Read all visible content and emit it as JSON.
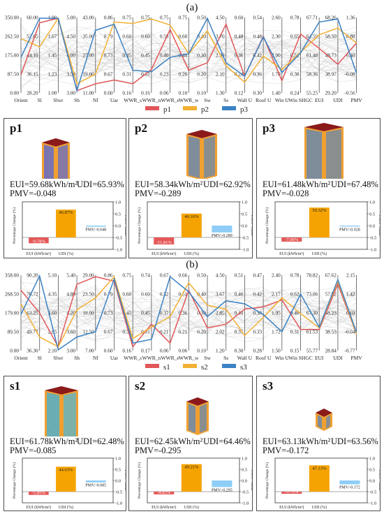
{
  "chart_data": [
    {
      "panel": "(a)",
      "type": "parallel-coordinates",
      "axes": [
        "Orient",
        "Sl",
        "Slwr",
        "Sh",
        "Nf",
        "Uar",
        "WWR_s",
        "WWR_n",
        "WWR_e",
        "WWR_w",
        "Sw",
        "Ss",
        "Wall U",
        "Roof U",
        "Win U",
        "Win SHGC",
        "EUI",
        "UDI",
        "PMV"
      ],
      "ticks": [
        [
          "350.00",
          "262.50",
          "175.00",
          "87.50",
          "0.00"
        ],
        [
          "60.00",
          "52.05",
          "44.10",
          "36.15",
          "28.20"
        ],
        [
          "1.90",
          "1.67",
          "1.45",
          "1.23",
          "1.00"
        ],
        [
          "5.00",
          "4.50",
          "4.00",
          "3.50",
          "3.00"
        ],
        [
          "43.00",
          "35.00",
          "27.00",
          "19.00",
          "11.00"
        ],
        [
          "0.86",
          "0.79",
          "0.73",
          "0.67",
          "0.60"
        ],
        [
          "0.75",
          "0.60",
          "0.45",
          "0.31",
          "0.16"
        ],
        [
          "0.75",
          "0.60",
          "0.45",
          "0.31",
          "0.16"
        ],
        [
          "0.75",
          "0.58",
          "0.40",
          "0.23",
          "0.06"
        ],
        [
          "0.75",
          "0.60",
          "0.44",
          "0.26",
          "0.10"
        ],
        [
          "0.50",
          "0.40",
          "0.30",
          "0.20",
          "0.10"
        ],
        [
          "4.50",
          "3.70",
          "2.90",
          "2.10",
          "1.30"
        ],
        [
          "0.60",
          "0.48",
          "0.36",
          "0.24",
          "0.12"
        ],
        [
          "0.54",
          "0.48",
          "0.42",
          "0.36",
          "0.30"
        ],
        [
          "2.60",
          "2.30",
          "2.00",
          "1.70",
          "1.40"
        ],
        [
          "0.78",
          "0.65",
          "0.51",
          "0.38",
          "0.24"
        ],
        [
          "67.71",
          "64.59",
          "61.48",
          "58.36",
          "55.25"
        ],
        [
          "68.26",
          "58.50",
          "48.73",
          "38.97",
          "29.20"
        ],
        [
          "1.36",
          "0.88",
          "0.40",
          "-0.08",
          "-0.56"
        ]
      ],
      "series": [
        {
          "name": "p1",
          "color": "#e15759",
          "norm": [
            0.24,
            0.93,
            0.99,
            0.03,
            0.12,
            0.17,
            0.12,
            0.31,
            0.84,
            0.3,
            0.4,
            0.91,
            0.22,
            0.75,
            0.16,
            0.78,
            0.59,
            0.38,
            0.66
          ]
        },
        {
          "name": "p2",
          "color": "#f2b134",
          "norm": [
            0.72,
            0.61,
            0.99,
            0.12,
            0.25,
            0.94,
            0.92,
            0.98,
            0.9,
            0.52,
            0.82,
            0.36,
            0.14,
            0.49,
            0.31,
            0.54,
            0.77,
            0.86,
            0.66
          ]
        },
        {
          "name": "p3",
          "color": "#3b82c4",
          "norm": [
            0.47,
            0.99,
            0.99,
            0.03,
            0.83,
            0.91,
            0.3,
            0.28,
            0.47,
            0.52,
            0.99,
            0.4,
            0.22,
            0.74,
            0.27,
            0.53,
            0.94,
            0.98,
            0.26
          ]
        }
      ],
      "legend": [
        "p1",
        "p2",
        "p3"
      ]
    },
    {
      "panel": "(b)",
      "type": "parallel-coordinates",
      "axes": [
        "Orient",
        "Sl",
        "Slwr",
        "Sh",
        "Nf",
        "Uar",
        "WWR_s",
        "WWR_n",
        "WWR_e",
        "WWR_w",
        "Sw",
        "Ss",
        "Wall U",
        "Roof U",
        "Win U",
        "Win SHGC",
        "EUI",
        "UDI",
        "PMV"
      ],
      "ticks": [
        [
          "358.00",
          "268.50",
          "179.00",
          "89.50",
          "0.00"
        ],
        [
          "90.20",
          "76.72",
          "63.25",
          "49.77",
          "36.30"
        ],
        [
          "5.10",
          "4.35",
          "3.60",
          "2.85",
          "2.10"
        ],
        [
          "5.40",
          "4.80",
          "4.20",
          "3.60",
          "3.00"
        ],
        [
          "29.00",
          "23.50",
          "18.00",
          "12.50",
          "7.00"
        ],
        [
          "0.86",
          "0.79",
          "0.73",
          "0.67",
          "0.60"
        ],
        [
          "0.75",
          "0.60",
          "0.45",
          "0.31",
          "0.16"
        ],
        [
          "0.74",
          "0.60",
          "0.45",
          "0.31",
          "0.17"
        ],
        [
          "0.67",
          "0.52",
          "0.37",
          "0.21",
          "0.06"
        ],
        [
          "0.66",
          "0.51",
          "0.36",
          "0.21",
          "0.06"
        ],
        [
          "0.50",
          "0.40",
          "0.30",
          "0.20",
          "0.10"
        ],
        [
          "4.50",
          "3.67",
          "2.85",
          "2.02",
          "1.20"
        ],
        [
          "0.51",
          "0.46",
          "0.40",
          "0.35",
          "0.30"
        ],
        [
          "0.47",
          "0.42",
          "0.38",
          "0.33",
          "0.28"
        ],
        [
          "2.40",
          "2.17",
          "1.95",
          "1.72",
          "1.50"
        ],
        [
          "0.78",
          "0.62",
          "0.46",
          "0.31",
          "0.15"
        ],
        [
          "78.82",
          "73.06",
          "67.30",
          "61.53",
          "55.77"
        ],
        [
          "67.62",
          "57.92",
          "48.23",
          "38.53",
          "28.84"
        ],
        [
          "2.15",
          "1.42",
          "0.69",
          "-0.04",
          "-0.77"
        ]
      ],
      "series": [
        {
          "name": "s1",
          "color": "#e15759",
          "norm": [
            0.8,
            0.5,
            0.05,
            0.88,
            0.98,
            0.92,
            0.05,
            0.35,
            0.1,
            0.8,
            0.3,
            0.35,
            0.55,
            0.58,
            0.67,
            0.28,
            0.28,
            0.88,
            0.22
          ]
        },
        {
          "name": "s2",
          "color": "#f2b134",
          "norm": [
            0.62,
            0.18,
            0.05,
            0.54,
            0.7,
            0.98,
            0.16,
            0.31,
            0.45,
            0.9,
            0.6,
            0.55,
            0.2,
            0.44,
            0.7,
            0.49,
            0.3,
            0.92,
            0.22
          ]
        },
        {
          "name": "s3",
          "color": "#3b82c4",
          "norm": [
            0.48,
            0.99,
            0.01,
            0.18,
            0.25,
            0.95,
            0.1,
            0.15,
            0.98,
            0.78,
            0.45,
            0.66,
            0.62,
            0.48,
            0.25,
            0.75,
            0.31,
            0.94,
            0.24
          ]
        }
      ],
      "legend": [
        "s1",
        "s2",
        "s3"
      ]
    },
    {
      "card": "p1",
      "type": "bar",
      "categories": [
        "EUI (kWh/m²)",
        "UDI (%)"
      ],
      "values": [
        -9.78,
        46.87
      ],
      "labels": [
        "-9.78%",
        "46.87%"
      ],
      "pmv": -0.048,
      "pmv_label": "PMV:-0.048",
      "ylabel": "Percentage Change (%)",
      "y2label": "PMV Value",
      "ylim": [
        -20,
        60
      ],
      "y2lim": [
        -1.0,
        1.0
      ],
      "y2ticks": [
        "1.0",
        "0.5",
        "0.0",
        "-0.5",
        "-1.0"
      ]
    },
    {
      "card": "p2",
      "type": "bar",
      "categories": [
        "EUI (kWh/m²)",
        "UDI (%)"
      ],
      "values": [
        -11.81,
        40.16
      ],
      "labels": [
        "-11.81%",
        "40.16%"
      ],
      "pmv": -0.289,
      "pmv_label": "PMV:-0.289",
      "ylabel": "Percentage Change (%)",
      "y2label": "PMV Value",
      "ylim": [
        -20,
        60
      ],
      "y2lim": [
        -1.0,
        1.0
      ],
      "y2ticks": [
        "1.0",
        "0.5",
        "0.0",
        "-0.5",
        "-1.0"
      ]
    },
    {
      "card": "p3",
      "type": "bar",
      "categories": [
        "EUI (kWh/m²)",
        "UDI (%)"
      ],
      "values": [
        -7.06,
        50.32
      ],
      "labels": [
        "-7.06%",
        "50.32%"
      ],
      "pmv": -0.028,
      "pmv_label": "PMV:-0.028",
      "ylabel": "Percentage Change (%)",
      "y2label": "PMV Value",
      "ylim": [
        -20,
        60
      ],
      "y2lim": [
        -1.0,
        1.0
      ],
      "y2ticks": [
        "1.0",
        "0.5",
        "0.0",
        "-0.5",
        "-1.0"
      ]
    },
    {
      "card": "s1",
      "type": "bar",
      "categories": [
        "EUI (kWh/m²)",
        "UDI (%)"
      ],
      "values": [
        -5.85,
        44.63
      ],
      "labels": [
        "-5.85%",
        "44.63%"
      ],
      "pmv": -0.085,
      "pmv_label": "PMV:-0.085",
      "ylabel": "Percentage Change (%)",
      "y2label": "PMV Value",
      "ylim": [
        -20,
        60
      ],
      "y2lim": [
        -1.0,
        1.0
      ],
      "y2ticks": [
        "1.0",
        "0.5",
        "0.0",
        "-0.5",
        "-1.0"
      ]
    },
    {
      "card": "s2",
      "type": "bar",
      "categories": [
        "EUI (kWh/m²)",
        "UDI (%)"
      ],
      "values": [
        -4.83,
        49.21
      ],
      "labels": [
        "-4.83%",
        "49.21%"
      ],
      "pmv": -0.295,
      "pmv_label": "PMV:-0.295",
      "ylabel": "Percentage Change (%)",
      "y2label": "PMV Value",
      "ylim": [
        -20,
        60
      ],
      "y2lim": [
        -1.0,
        1.0
      ],
      "y2ticks": [
        "1.0",
        "0.5",
        "0.0",
        "-0.5",
        "-1.0"
      ]
    },
    {
      "card": "s3",
      "type": "bar",
      "categories": [
        "EUI (kWh/m²)",
        "UDI (%)"
      ],
      "values": [
        -3.79,
        47.13
      ],
      "labels": [
        "-3.79%",
        "47.13%"
      ],
      "pmv": -0.172,
      "pmv_label": "PMV:-0.172",
      "ylabel": "Percentage Change (%)",
      "y2label": "PMV Value",
      "ylim": [
        -20,
        60
      ],
      "y2lim": [
        -1.0,
        1.0
      ],
      "y2ticks": [
        "1.0",
        "0.5",
        "0.0",
        "-0.5",
        "-1.0"
      ]
    }
  ],
  "labels": {
    "a": "(a)",
    "b": "(b)"
  },
  "cards": [
    {
      "title": "p1",
      "eui": "EUI=59.68kWh/m²",
      "udi": "UDI=65.93%",
      "pmv": "PMV=-0.048"
    },
    {
      "title": "p2",
      "eui": "EUI=58.34kWh/m²",
      "udi": "UDI=62.92%",
      "pmv": "PMV=-0.289"
    },
    {
      "title": "p3",
      "eui": "EUI=61.48kWh/m²",
      "udi": "UDI=67.48%",
      "pmv": "PMV=-0.028"
    },
    {
      "title": "s1",
      "eui": "EUI=61.78kWh/m²",
      "udi": "UDI=62.48%",
      "pmv": "PMV=-0.085"
    },
    {
      "title": "s2",
      "eui": "EUI=62.45kWh/m²",
      "udi": "UDI=64.46%",
      "pmv": "PMV=-0.295"
    },
    {
      "title": "s3",
      "eui": "EUI=63.13kWh/m²",
      "udi": "UDI=63.56%",
      "pmv": "PMV=-0.172"
    }
  ],
  "colors": {
    "roof": "#8b1a1a",
    "facade_orange": "#f0a030",
    "facade_grey": "#7f8c9a",
    "facade_purple": "#7a74b0",
    "window_teal": "#6fb3b8",
    "bar_eui": "#e45756",
    "bar_udi": "#f5a300",
    "bar_pmv": "#8ecdf7",
    "bg_lines": "#cfcfcf"
  }
}
